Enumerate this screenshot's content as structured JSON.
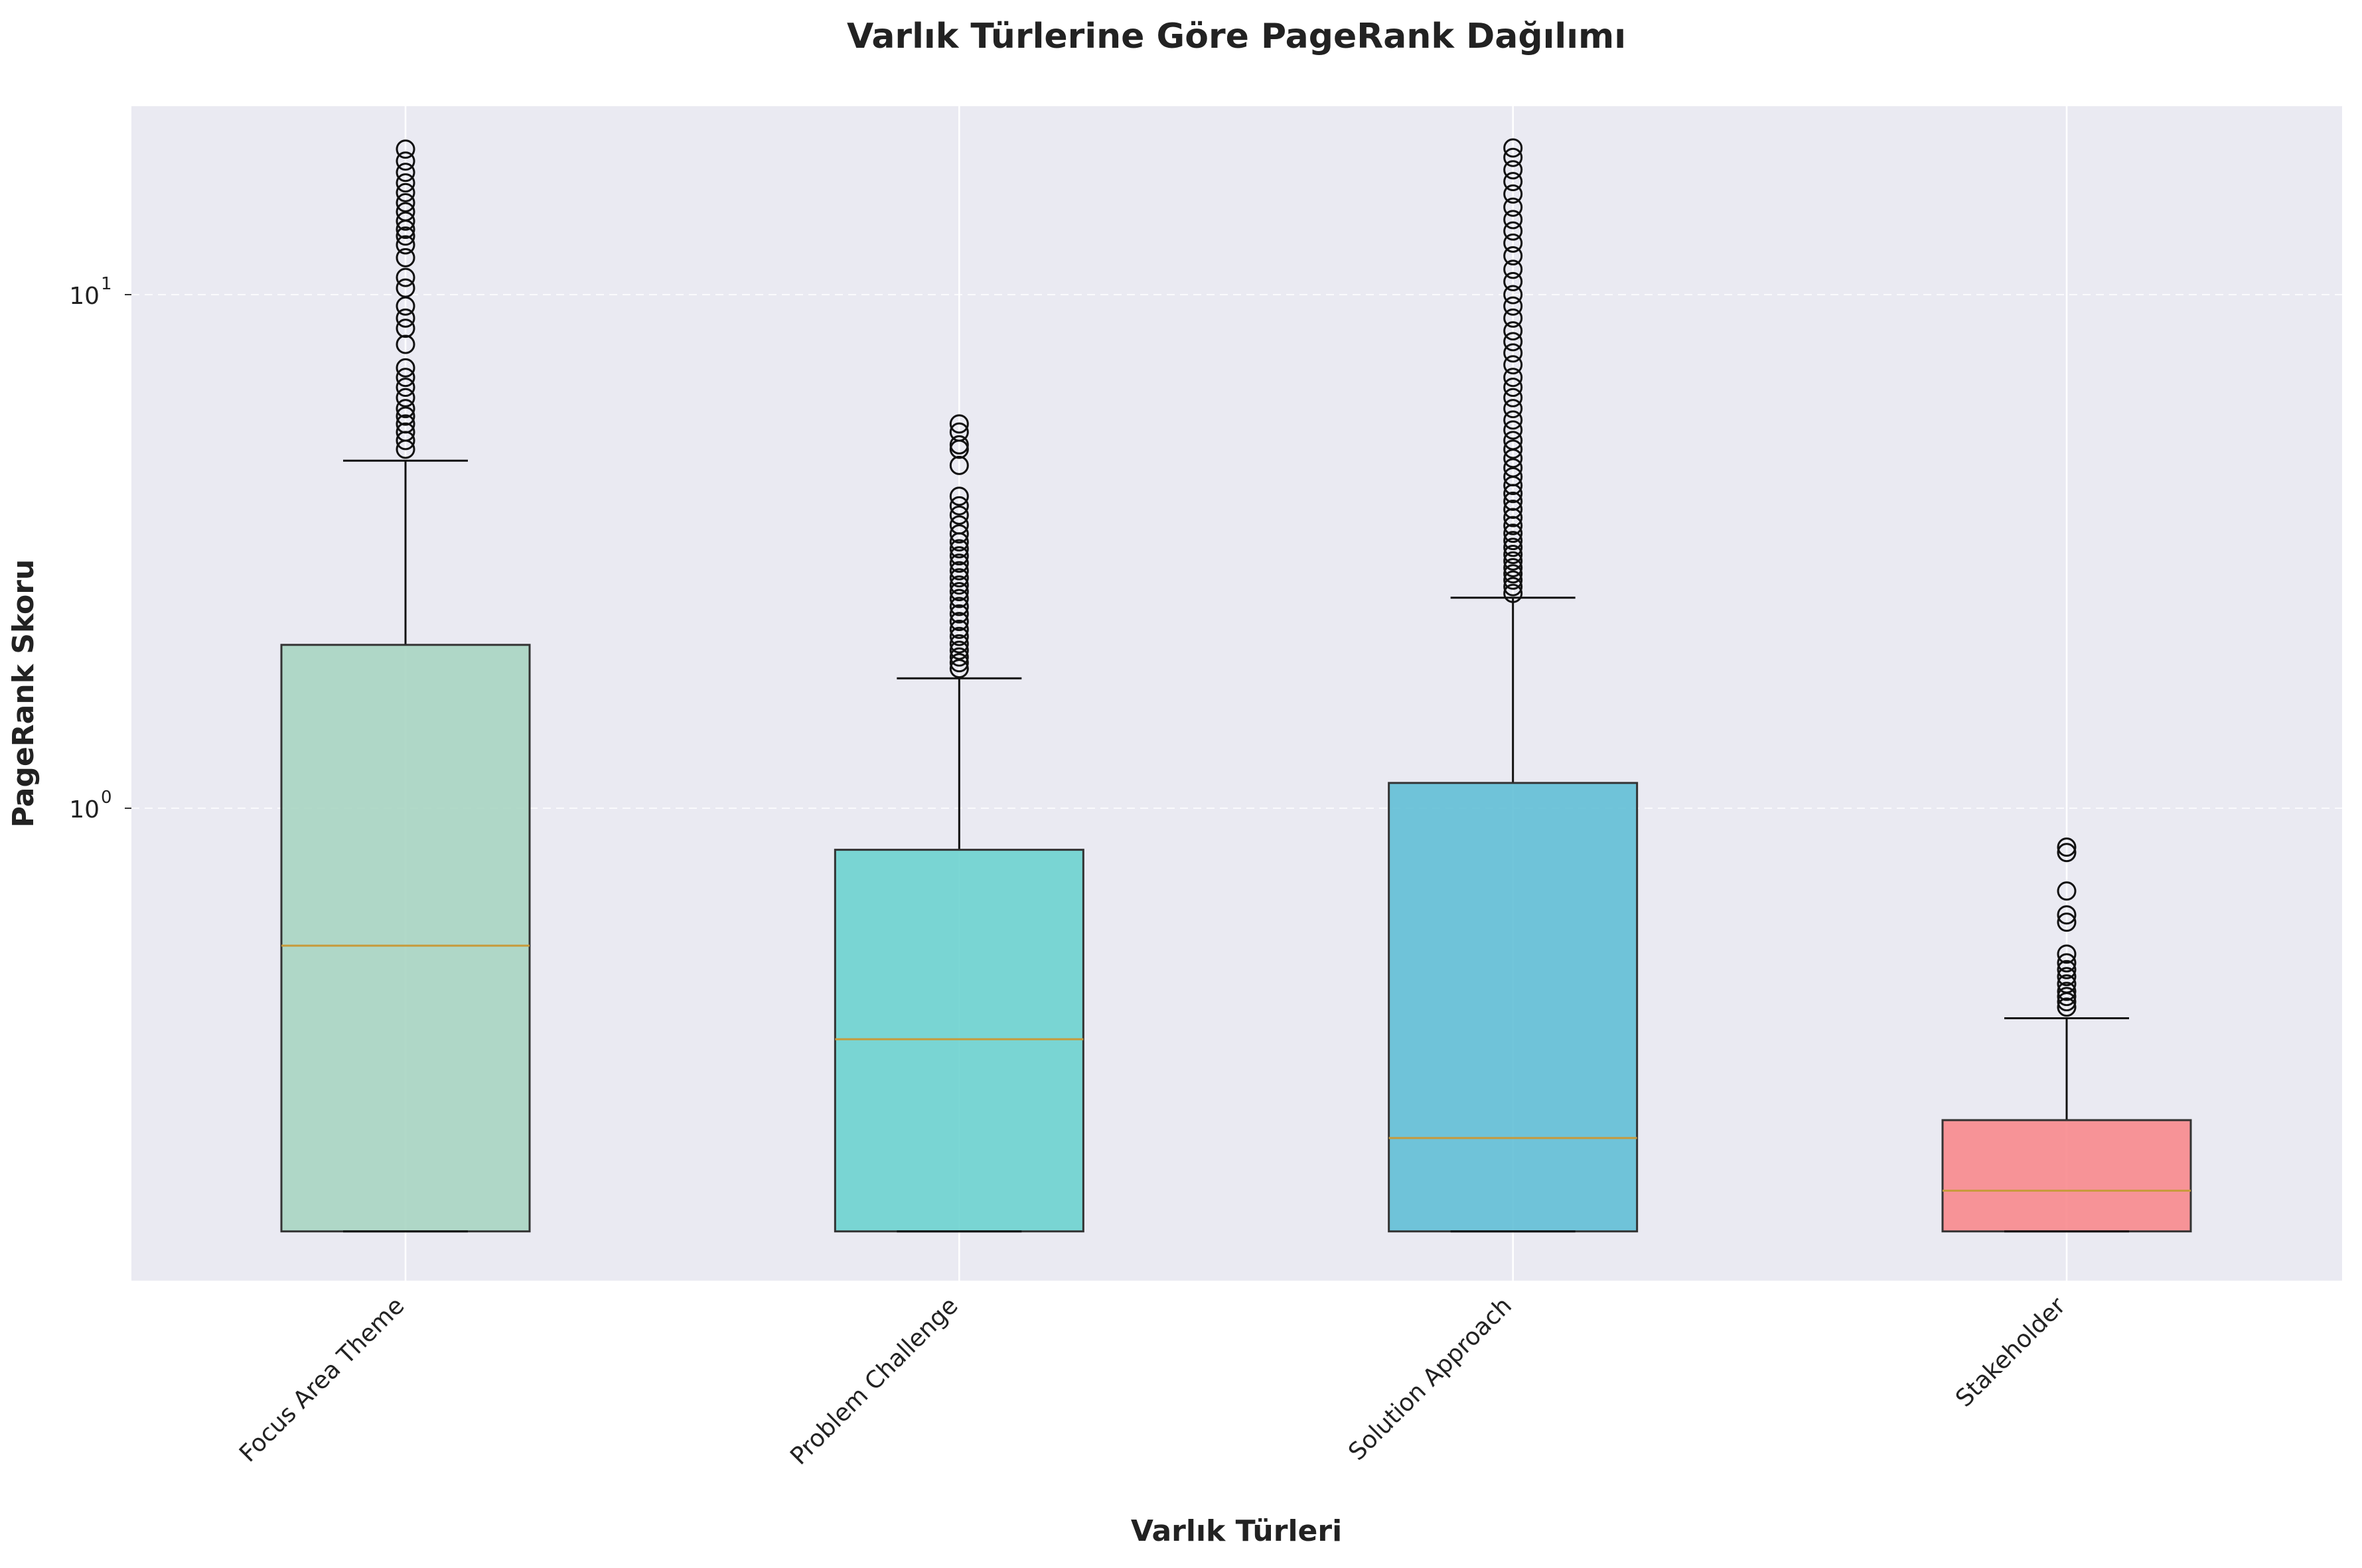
{
  "chart_data": {
    "type": "boxplot",
    "title": "Varlık Türlerine Göre PageRank Dağılımı",
    "xlabel": "Varlık Türleri",
    "ylabel": "PageRank Skoru",
    "yscale": "log",
    "ylim": [
      0.125,
      25
    ],
    "yticks": [
      {
        "value": 1,
        "base": "10",
        "exp": "0"
      },
      {
        "value": 10,
        "base": "10",
        "exp": "1"
      }
    ],
    "grid": true,
    "background": "#eaeaf2",
    "median_color": "#c79a3a",
    "categories": [
      "Focus Area Theme",
      "Problem Challenge",
      "Solution Approach",
      "Stakeholder"
    ],
    "boxes": [
      {
        "name": "Focus Area Theme",
        "color": "#a8d5c2",
        "whislo": 0.15,
        "q1": 0.15,
        "med": 0.54,
        "q3": 2.08,
        "whishi": 4.75,
        "fliers": [
          5.0,
          5.2,
          5.4,
          5.6,
          5.8,
          6.0,
          6.3,
          6.6,
          6.9,
          7.2,
          8.0,
          8.6,
          9.0,
          9.5,
          10.3,
          10.8,
          11.8,
          12.5,
          13.0,
          13.4,
          13.9,
          14.5,
          15.1,
          15.8,
          16.5,
          17.3,
          18.2,
          19.2
        ]
      },
      {
        "name": "Problem Challenge",
        "color": "#6dd3cf",
        "whislo": 0.15,
        "q1": 0.15,
        "med": 0.355,
        "q3": 0.83,
        "whishi": 1.79,
        "fliers": [
          1.87,
          1.92,
          1.97,
          2.03,
          2.09,
          2.16,
          2.23,
          2.31,
          2.39,
          2.47,
          2.56,
          2.64,
          2.72,
          2.81,
          2.9,
          3.0,
          3.1,
          3.2,
          3.3,
          3.42,
          3.56,
          3.72,
          3.88,
          4.05,
          4.65,
          5.0,
          5.1,
          5.4,
          5.6
        ]
      },
      {
        "name": "Solution Approach",
        "color": "#62bfd6",
        "whislo": 0.15,
        "q1": 0.15,
        "med": 0.228,
        "q3": 1.12,
        "whishi": 2.57,
        "fliers": [
          2.62,
          2.7,
          2.78,
          2.86,
          2.94,
          3.03,
          3.12,
          3.22,
          3.32,
          3.43,
          3.55,
          3.68,
          3.82,
          3.96,
          4.1,
          4.25,
          4.42,
          4.6,
          4.8,
          5.0,
          5.2,
          5.45,
          5.7,
          6.0,
          6.3,
          6.6,
          6.9,
          7.3,
          7.7,
          8.1,
          8.5,
          9.0,
          9.5,
          10.0,
          10.6,
          11.2,
          11.9,
          12.6,
          13.3,
          14.0,
          14.8,
          15.7,
          16.6,
          17.5,
          18.5,
          19.3
        ]
      },
      {
        "name": "Stakeholder",
        "color": "#f88a8d",
        "whislo": 0.15,
        "q1": 0.15,
        "med": 0.18,
        "q3": 0.247,
        "whishi": 0.39,
        "fliers": [
          0.41,
          0.42,
          0.43,
          0.44,
          0.455,
          0.47,
          0.485,
          0.5,
          0.52,
          0.6,
          0.62,
          0.69,
          0.82,
          0.84
        ]
      }
    ]
  }
}
